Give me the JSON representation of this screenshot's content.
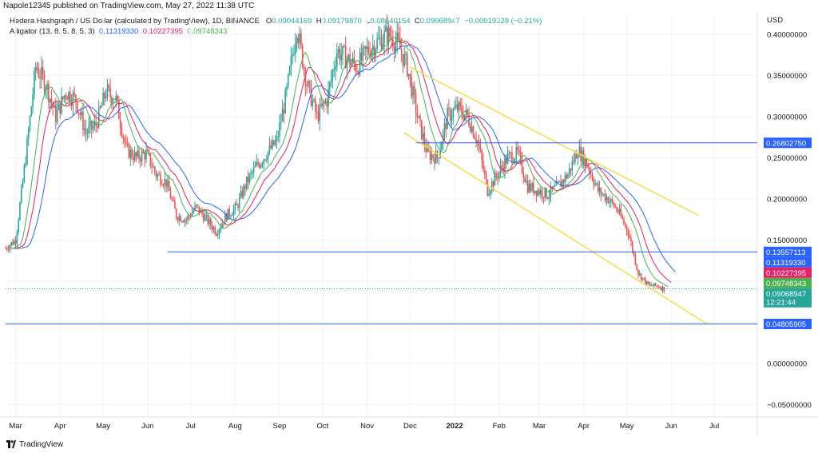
{
  "header": {
    "published": "Napole12345 published on TradingView.com, May 27, 2022 11:38 UTC"
  },
  "legend": {
    "symbol": "Hedera Hashgraph / US Dollar (calculated by TradingView), 1D, BINANCE",
    "o_label": "O",
    "o_val": "0.09044169",
    "h_label": "H",
    "h_val": "0.09179870",
    "l_label": "L",
    "l_val": "0.08640154",
    "c_label": "C",
    "c_val": "0.09068947",
    "chg": "−0.00019328 (−0.21%)",
    "ind_name": "Alligator (13, 8, 5, 8, 5, 3)",
    "jaw": "0.11319330",
    "teeth": "0.10227395",
    "lips": "0.09748343"
  },
  "currency": "USD",
  "footer": {
    "brand": "TradingView"
  },
  "colors": {
    "up": "#26a69a",
    "down": "#ef5350",
    "jaw": "#2962ff",
    "teeth": "#e91e63",
    "lips": "#4caf50",
    "hline": "#2962ff",
    "channel": "#f7dc4a"
  },
  "chart_data": {
    "type": "candlestick",
    "yticks": [
      "0.40000000",
      "0.35000000",
      "0.30000000",
      "0.25000000",
      "0.20000000",
      "0.15000000",
      "0.10000000",
      "0.05000000",
      "0.00000000",
      "−0.05000000"
    ],
    "ytick_values": [
      0.4,
      0.35,
      0.3,
      0.25,
      0.2,
      0.15,
      0.1,
      0.05,
      0.0,
      -0.05
    ],
    "ylim": [
      -0.065,
      0.425
    ],
    "xticks": [
      "Mar",
      "Apr",
      "May",
      "Jun",
      "Jul",
      "Aug",
      "Sep",
      "Oct",
      "Nov",
      "Dec",
      "2022",
      "Feb",
      "Mar",
      "Apr",
      "May",
      "Jun",
      "Jul"
    ],
    "xtick_dates": [
      "2021-03-01",
      "2021-04-01",
      "2021-05-01",
      "2021-06-01",
      "2021-07-01",
      "2021-08-01",
      "2021-09-01",
      "2021-10-01",
      "2021-11-01",
      "2021-12-01",
      "2022-01-01",
      "2022-02-01",
      "2022-03-01",
      "2022-04-01",
      "2022-05-01",
      "2022-06-01",
      "2022-07-01"
    ],
    "xrange": [
      "2021-02-22",
      "2022-07-31"
    ],
    "price_path": [
      [
        "2021-02-22",
        0.14
      ],
      [
        "2021-03-01",
        0.15
      ],
      [
        "2021-03-08",
        0.25
      ],
      [
        "2021-03-15",
        0.36
      ],
      [
        "2021-03-22",
        0.34
      ],
      [
        "2021-03-29",
        0.3
      ],
      [
        "2021-04-05",
        0.33
      ],
      [
        "2021-04-12",
        0.32
      ],
      [
        "2021-04-19",
        0.28
      ],
      [
        "2021-04-26",
        0.29
      ],
      [
        "2021-05-03",
        0.33
      ],
      [
        "2021-05-10",
        0.32
      ],
      [
        "2021-05-17",
        0.26
      ],
      [
        "2021-05-24",
        0.25
      ],
      [
        "2021-05-31",
        0.255
      ],
      [
        "2021-06-07",
        0.23
      ],
      [
        "2021-06-14",
        0.22
      ],
      [
        "2021-06-21",
        0.18
      ],
      [
        "2021-06-28",
        0.175
      ],
      [
        "2021-07-05",
        0.19
      ],
      [
        "2021-07-12",
        0.175
      ],
      [
        "2021-07-19",
        0.16
      ],
      [
        "2021-07-26",
        0.18
      ],
      [
        "2021-08-02",
        0.19
      ],
      [
        "2021-08-09",
        0.22
      ],
      [
        "2021-08-16",
        0.24
      ],
      [
        "2021-08-23",
        0.255
      ],
      [
        "2021-08-30",
        0.27
      ],
      [
        "2021-09-06",
        0.33
      ],
      [
        "2021-09-13",
        0.41
      ],
      [
        "2021-09-20",
        0.34
      ],
      [
        "2021-09-27",
        0.3
      ],
      [
        "2021-10-04",
        0.32
      ],
      [
        "2021-10-11",
        0.38
      ],
      [
        "2021-10-18",
        0.37
      ],
      [
        "2021-10-25",
        0.36
      ],
      [
        "2021-11-01",
        0.38
      ],
      [
        "2021-11-08",
        0.39
      ],
      [
        "2021-11-15",
        0.4
      ],
      [
        "2021-11-22",
        0.39
      ],
      [
        "2021-11-29",
        0.36
      ],
      [
        "2021-12-06",
        0.3
      ],
      [
        "2021-12-13",
        0.255
      ],
      [
        "2021-12-20",
        0.25
      ],
      [
        "2021-12-27",
        0.3
      ],
      [
        "2022-01-03",
        0.31
      ],
      [
        "2022-01-10",
        0.3
      ],
      [
        "2022-01-17",
        0.27
      ],
      [
        "2022-01-24",
        0.21
      ],
      [
        "2022-01-31",
        0.23
      ],
      [
        "2022-02-07",
        0.25
      ],
      [
        "2022-02-14",
        0.255
      ],
      [
        "2022-02-21",
        0.215
      ],
      [
        "2022-02-28",
        0.21
      ],
      [
        "2022-03-07",
        0.205
      ],
      [
        "2022-03-14",
        0.215
      ],
      [
        "2022-03-21",
        0.23
      ],
      [
        "2022-03-28",
        0.26
      ],
      [
        "2022-04-04",
        0.24
      ],
      [
        "2022-04-11",
        0.21
      ],
      [
        "2022-04-18",
        0.2
      ],
      [
        "2022-04-25",
        0.185
      ],
      [
        "2022-05-02",
        0.16
      ],
      [
        "2022-05-09",
        0.11
      ],
      [
        "2022-05-16",
        0.095
      ],
      [
        "2022-05-23",
        0.094
      ],
      [
        "2022-05-27",
        0.0907
      ]
    ],
    "levels": [
      {
        "label": "0.26802750",
        "value": 0.2680275
      },
      {
        "label": "0.13557113",
        "value": 0.13557113
      },
      {
        "label": "0.04805905",
        "value": 0.04805905
      }
    ],
    "price_tags": [
      {
        "label": "0.11319330",
        "value": 0.1131933,
        "color": "#2962ff"
      },
      {
        "label": "0.10227395",
        "value": 0.10227395,
        "color": "#e91e63"
      },
      {
        "label": "0.09748343",
        "value": 0.09748343,
        "color": "#4caf50"
      },
      {
        "label": "0.09068947",
        "sub": "12:21:44",
        "value": 0.09068947,
        "color": "#26a69a"
      }
    ],
    "channel": [
      {
        "from": [
          "2021-12-01",
          0.36
        ],
        "to": [
          "2022-06-20",
          0.18
        ]
      },
      {
        "from": [
          "2021-11-27",
          0.28
        ],
        "to": [
          "2022-06-26",
          0.048
        ]
      }
    ],
    "grid": true
  }
}
